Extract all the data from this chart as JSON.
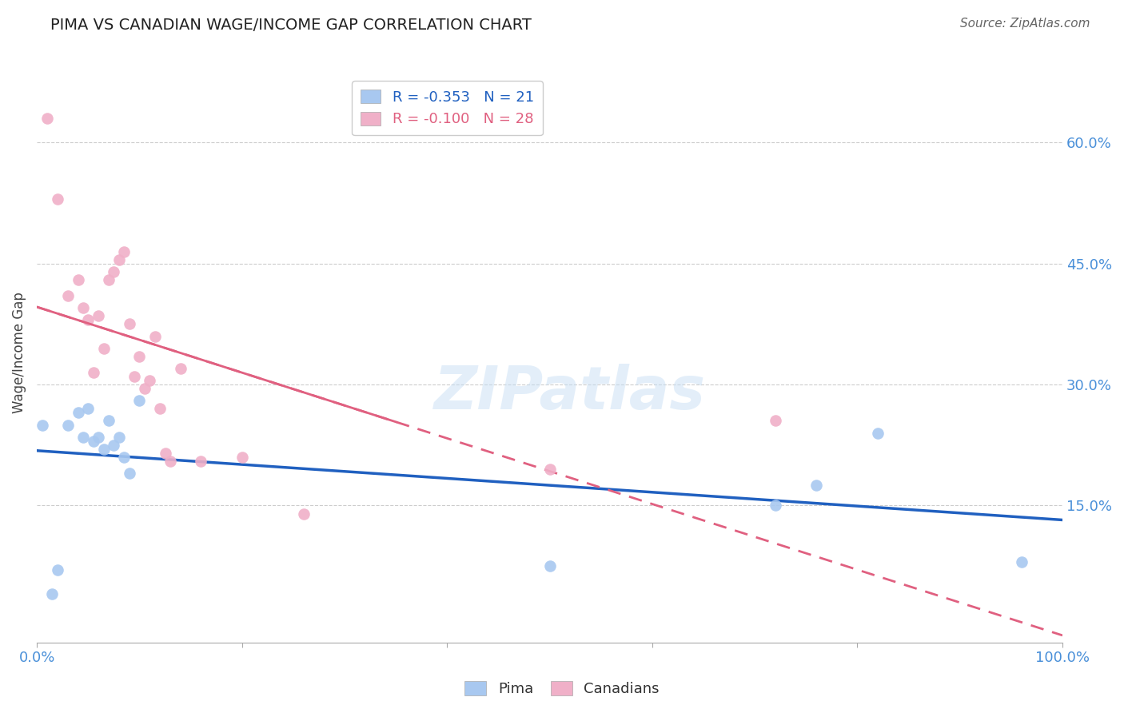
{
  "title": "PIMA VS CANADIAN WAGE/INCOME GAP CORRELATION CHART",
  "source": "Source: ZipAtlas.com",
  "ylabel": "Wage/Income Gap",
  "xlim": [
    0.0,
    100.0
  ],
  "ylim": [
    -2.0,
    70.0
  ],
  "pima_color": "#a8c8f0",
  "canadians_color": "#f0b0c8",
  "pima_line_color": "#2060c0",
  "canadians_line_color": "#e06080",
  "background_color": "#ffffff",
  "pima_x": [
    0.5,
    1.5,
    2.0,
    3.0,
    4.0,
    4.5,
    5.0,
    5.5,
    6.0,
    6.5,
    7.0,
    7.5,
    8.0,
    8.5,
    9.0,
    10.0,
    50.0,
    72.0,
    76.0,
    82.0,
    96.0
  ],
  "pima_y": [
    25.0,
    4.0,
    7.0,
    25.0,
    26.5,
    23.5,
    27.0,
    23.0,
    23.5,
    22.0,
    25.5,
    22.5,
    23.5,
    21.0,
    19.0,
    28.0,
    7.5,
    15.0,
    17.5,
    24.0,
    8.0
  ],
  "canadians_x": [
    1.0,
    2.0,
    3.0,
    4.0,
    4.5,
    5.0,
    5.5,
    6.0,
    6.5,
    7.0,
    7.5,
    8.0,
    8.5,
    9.0,
    9.5,
    10.0,
    10.5,
    11.0,
    11.5,
    12.0,
    12.5,
    13.0,
    14.0,
    16.0,
    20.0,
    26.0,
    50.0,
    72.0
  ],
  "canadians_y": [
    63.0,
    53.0,
    41.0,
    43.0,
    39.5,
    38.0,
    31.5,
    38.5,
    34.5,
    43.0,
    44.0,
    45.5,
    46.5,
    37.5,
    31.0,
    33.5,
    29.5,
    30.5,
    36.0,
    27.0,
    21.5,
    20.5,
    32.0,
    20.5,
    21.0,
    14.0,
    19.5,
    25.5
  ],
  "ytick_vals": [
    15.0,
    30.0,
    45.0,
    60.0
  ],
  "ytick_labels": [
    "15.0%",
    "30.0%",
    "45.0%",
    "60.0%"
  ]
}
